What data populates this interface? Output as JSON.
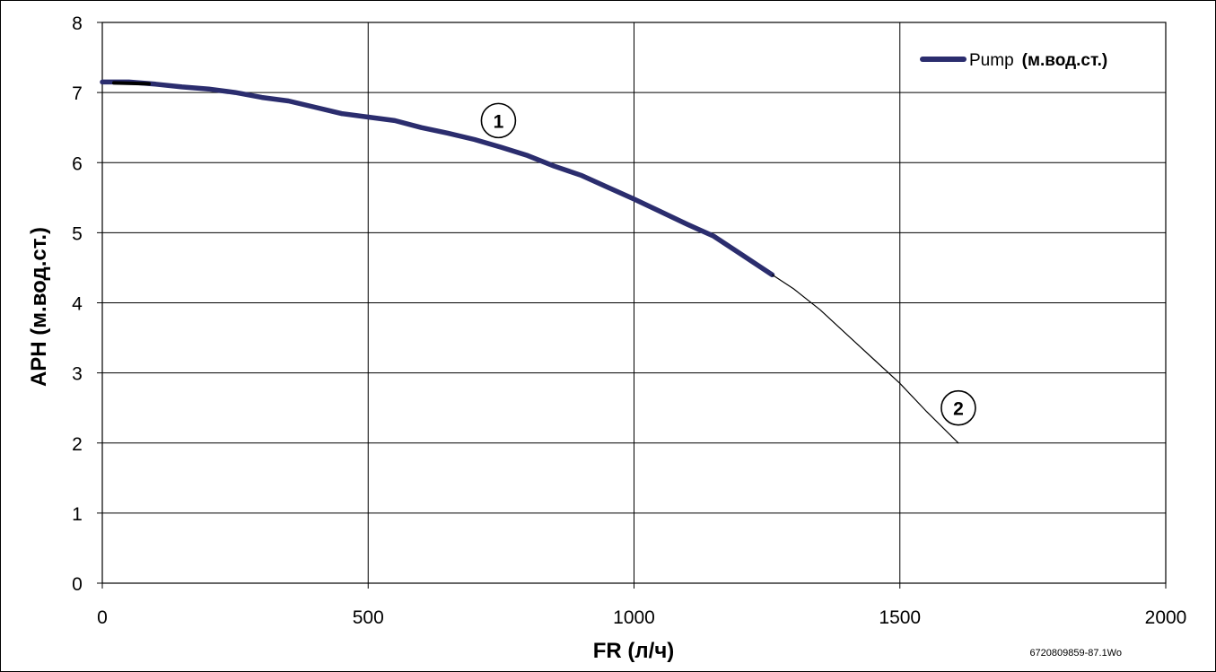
{
  "chart_data": {
    "type": "line",
    "xlabel": "FR (л/ч)",
    "ylabel": "APH (м.вод.ст.)",
    "xlim": [
      0,
      2000
    ],
    "ylim": [
      0,
      8
    ],
    "x_ticks": [
      "0",
      "500",
      "1000",
      "1500",
      "2000"
    ],
    "y_ticks": [
      "0",
      "1",
      "2",
      "3",
      "4",
      "5",
      "6",
      "7",
      "8"
    ],
    "grid": true,
    "legend_position": "top-right",
    "legend": {
      "name": "Pump",
      "unit": "(м.вод.ст.)"
    },
    "series": [
      {
        "name": "Pump",
        "color": "#2b2d6e",
        "x": [
          0,
          50,
          100,
          150,
          200,
          250,
          300,
          350,
          400,
          450,
          500,
          550,
          600,
          650,
          700,
          750,
          800,
          850,
          900,
          950,
          1000,
          1050,
          1100,
          1150,
          1200,
          1260
        ],
        "y": [
          7.15,
          7.15,
          7.12,
          7.08,
          7.05,
          7.0,
          6.93,
          6.88,
          6.79,
          6.7,
          6.65,
          6.6,
          6.5,
          6.42,
          6.33,
          6.22,
          6.1,
          5.95,
          5.82,
          5.65,
          5.48,
          5.3,
          5.12,
          4.95,
          4.7,
          4.4
        ]
      },
      {
        "color": "#000000",
        "x": [
          1260,
          1300,
          1350,
          1400,
          1450,
          1500,
          1550,
          1610
        ],
        "y": [
          4.4,
          4.2,
          3.9,
          3.55,
          3.2,
          2.85,
          2.45,
          2.0
        ]
      }
    ],
    "annotations": [
      {
        "label": "1",
        "x": 745,
        "y": 6.6
      },
      {
        "label": "2",
        "x": 1610,
        "y": 2.5
      }
    ],
    "figure_code": "6720809859-87.1Wo"
  }
}
